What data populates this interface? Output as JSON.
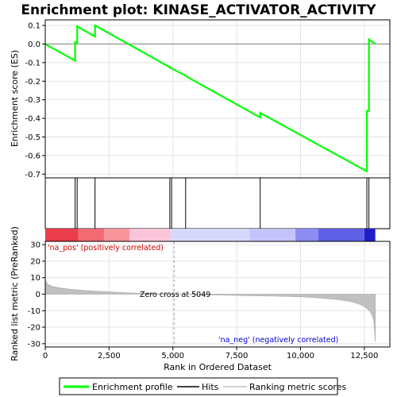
{
  "chart_data": {
    "type": "line",
    "title": "Enrichment plot: KINASE_ACTIVATOR_ACTIVITY",
    "xlabel": "Rank in Ordered Dataset",
    "xlim": [
      0,
      13500
    ],
    "x_ticks": [
      0,
      2500,
      5000,
      7500,
      10000,
      12500
    ],
    "x_tick_labels": [
      "0",
      "2,500",
      "5,000",
      "7,500",
      "10,000",
      "12,500"
    ],
    "es_panel": {
      "ylabel": "Enrichment score (ES)",
      "ylim": [
        -0.72,
        0.13
      ],
      "y_ticks": [
        0.1,
        0.0,
        -0.1,
        -0.2,
        -0.3,
        -0.4,
        -0.5,
        -0.6,
        -0.7
      ],
      "y_tick_labels": [
        "0.1",
        "0.0",
        "-0.1",
        "-0.2",
        "-0.3",
        "-0.4",
        "-0.5",
        "-0.6",
        "-0.7"
      ],
      "grid": true,
      "series": [
        {
          "name": "Enrichment profile",
          "color": "#00ff00",
          "x": [
            0,
            1170,
            1171,
            1250,
            1251,
            1950,
            1951,
            4880,
            4881,
            4950,
            4951,
            5500,
            5501,
            8420,
            8421,
            12600,
            12601,
            12680,
            12681,
            12930
          ],
          "y": [
            0.0,
            -0.09,
            0.01,
            0.005,
            0.095,
            0.04,
            0.1,
            -0.125,
            -0.127,
            -0.13,
            -0.132,
            -0.17,
            -0.172,
            -0.395,
            -0.37,
            -0.685,
            -0.36,
            -0.36,
            0.025,
            0.0
          ]
        }
      ]
    },
    "hits_panel": {
      "hit_ranks": [
        1170,
        1250,
        1950,
        4880,
        4950,
        5500,
        8420,
        12600,
        12680
      ]
    },
    "heatmap_bar": {
      "segments": [
        {
          "from": 0,
          "to": 1300,
          "color": "#ea3c4b"
        },
        {
          "from": 1300,
          "to": 2300,
          "color": "#f36a72"
        },
        {
          "from": 2300,
          "to": 3300,
          "color": "#f7959a"
        },
        {
          "from": 3300,
          "to": 4900,
          "color": "#fcc4d8"
        },
        {
          "from": 4900,
          "to": 8000,
          "color": "#d8d8fc"
        },
        {
          "from": 8000,
          "to": 9800,
          "color": "#c4c4fa"
        },
        {
          "from": 9800,
          "to": 10700,
          "color": "#8c8cf2"
        },
        {
          "from": 10700,
          "to": 12500,
          "color": "#6060e6"
        },
        {
          "from": 12500,
          "to": 12930,
          "color": "#1e1ec8"
        }
      ]
    },
    "metric_panel": {
      "ylabel": "Ranked list metric (PreRanked)",
      "ylim": [
        -32,
        32
      ],
      "y_ticks": [
        30,
        20,
        10,
        0,
        -10,
        -20,
        -30
      ],
      "y_tick_labels": [
        "30",
        "20",
        "10",
        "0",
        "-10",
        "-20",
        "-30"
      ],
      "grid": true,
      "fill_color": "#c0c0c0",
      "curve": {
        "x": [
          0,
          100,
          300,
          600,
          1000,
          1500,
          2000,
          2500,
          3000,
          3500,
          4000,
          4500,
          5049,
          6000,
          7000,
          8000,
          9000,
          10000,
          10500,
          11000,
          11500,
          12000,
          12300,
          12500,
          12700,
          12800,
          12870,
          12900,
          12930
        ],
        "y": [
          8.5,
          6.0,
          4.6,
          3.7,
          3.0,
          2.3,
          1.8,
          1.4,
          1.0,
          0.7,
          0.4,
          0.2,
          0.0,
          -0.3,
          -0.6,
          -0.9,
          -1.2,
          -1.6,
          -2.0,
          -2.6,
          -3.3,
          -4.5,
          -6.0,
          -7.5,
          -10.0,
          -12.5,
          -16.0,
          -22.0,
          -29.0
        ]
      },
      "zero_cross_rank": 5049,
      "zero_cross_label": "Zero cross at 5049",
      "pos_label": "'na_pos' (positively correlated)",
      "pos_color": "#d00000",
      "neg_label": "'na_neg' (negatively correlated)",
      "neg_color": "#0000d0"
    },
    "legend": {
      "placement": "bottom",
      "entries": [
        {
          "label": "Enrichment profile",
          "color": "#00ff00"
        },
        {
          "label": "Hits",
          "color": "#000000"
        },
        {
          "label": "Ranking metric scores",
          "color": "#c0c0c0"
        }
      ]
    }
  }
}
